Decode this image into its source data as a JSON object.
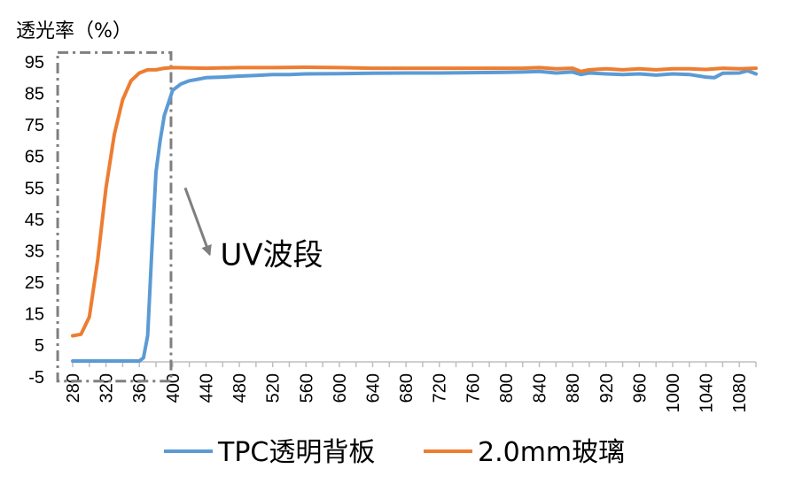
{
  "chart_data": {
    "type": "line",
    "title": "",
    "ylabel": "透光率（%）",
    "xlabel": "",
    "ylim": [
      -5,
      95
    ],
    "y_ticks": [
      "-5",
      "5",
      "15",
      "25",
      "35",
      "45",
      "55",
      "65",
      "75",
      "85",
      "95"
    ],
    "xlim": [
      280,
      1100
    ],
    "x_ticks": [
      "280",
      "320",
      "360",
      "400",
      "440",
      "480",
      "520",
      "560",
      "600",
      "640",
      "680",
      "720",
      "760",
      "800",
      "840",
      "880",
      "920",
      "960",
      "1000",
      "1040",
      "1080"
    ],
    "grid": false,
    "legend_position": "bottom",
    "series": [
      {
        "name": "TPC透明背板",
        "color": "#5B9BD5",
        "x": [
          280,
          290,
          300,
          310,
          320,
          330,
          340,
          350,
          355,
          360,
          365,
          370,
          375,
          380,
          385,
          390,
          395,
          400,
          410,
          420,
          430,
          440,
          460,
          480,
          500,
          520,
          540,
          560,
          600,
          640,
          680,
          720,
          760,
          800,
          820,
          840,
          860,
          880,
          890,
          900,
          920,
          940,
          960,
          980,
          1000,
          1020,
          1040,
          1050,
          1060,
          1080,
          1090,
          1100
        ],
        "values": [
          0,
          0,
          0,
          0,
          0,
          0,
          0,
          0,
          0,
          0,
          1,
          8,
          35,
          60,
          70,
          78,
          82,
          86,
          88,
          89,
          89.5,
          90,
          90.2,
          90.5,
          90.7,
          91,
          91,
          91.2,
          91.3,
          91.4,
          91.5,
          91.5,
          91.6,
          91.7,
          91.8,
          92,
          91.5,
          91.8,
          91,
          91.5,
          91.2,
          91,
          91.2,
          90.8,
          91.2,
          91,
          90.2,
          90,
          91.4,
          91.5,
          92.2,
          91.2
        ]
      },
      {
        "name": "2.0mm玻璃",
        "color": "#ED7D31",
        "x": [
          280,
          290,
          300,
          310,
          320,
          330,
          340,
          350,
          360,
          370,
          380,
          390,
          400,
          440,
          480,
          520,
          560,
          600,
          640,
          680,
          720,
          760,
          800,
          820,
          840,
          860,
          880,
          890,
          900,
          920,
          940,
          960,
          980,
          1000,
          1020,
          1040,
          1060,
          1080,
          1100
        ],
        "values": [
          8,
          8.5,
          14,
          32,
          55,
          72,
          83,
          89,
          91.5,
          92.5,
          92.5,
          93,
          93.2,
          93,
          93.2,
          93.2,
          93.3,
          93.2,
          93,
          93,
          93,
          93,
          93,
          93,
          93.2,
          92.8,
          93,
          92,
          92.5,
          92.8,
          92.5,
          92.8,
          92.5,
          92.8,
          92.8,
          92.6,
          93,
          92.8,
          93
        ]
      }
    ],
    "annotation": {
      "text": "UV波段",
      "arrow_from": [
        398,
        55
      ],
      "arrow_to": [
        455,
        35
      ]
    },
    "highlight_box": {
      "x_range": [
        262,
        398
      ],
      "y_range": [
        -5,
        98
      ]
    }
  }
}
